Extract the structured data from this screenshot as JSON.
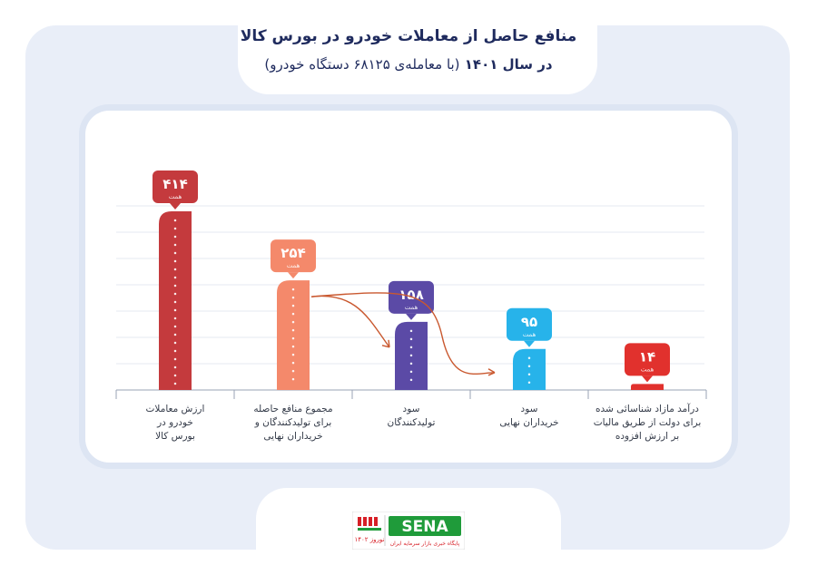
{
  "title_line1": "منافع حاصل از معاملات خودرو در بورس کالا",
  "title_line2_bold": "در سال ۱۴۰۱",
  "title_line2_rest": "(با معامله‌ی ۶۸۱۲۵ دستگاه خودرو)",
  "chart_data": {
    "type": "bar",
    "unit_label": "همت",
    "categories": [
      [
        "ارزش معاملات",
        "خودرو در",
        "بورس کالا"
      ],
      [
        "مجموع منافع حاصله",
        "برای تولیدکنندگان و",
        "خریداران نهایی"
      ],
      [
        "سود",
        "تولیدکنندگان"
      ],
      [
        "سود",
        "خریداران نهایی"
      ],
      [
        "درآمد مازاد شناسائی شده",
        "برای دولت از طریق مالیات",
        "بر ارزش افزوده"
      ]
    ],
    "values": [
      414,
      254,
      158,
      95,
      14
    ],
    "value_labels": [
      "۴۱۴",
      "۲۵۴",
      "۱۵۸",
      "۹۵",
      "۱۴"
    ],
    "colors": [
      "#c43a3d",
      "#f4896b",
      "#5b4aa6",
      "#27b3ea",
      "#e1312d"
    ],
    "ylim": [
      0,
      414
    ],
    "grid": true,
    "annotations": [
      "arrow: مجموع منافع حاصله → سود تولیدکنندگان",
      "arrow: مجموع منافع حاصله → سود خریداران نهایی"
    ]
  },
  "logo": {
    "brand": "SENA",
    "caption": "پایگاه خبری بازار سرمایه ایران",
    "side_text": "نوروز ۱۴۰۲",
    "green": "#1f9b3a",
    "red": "#d71f26"
  }
}
